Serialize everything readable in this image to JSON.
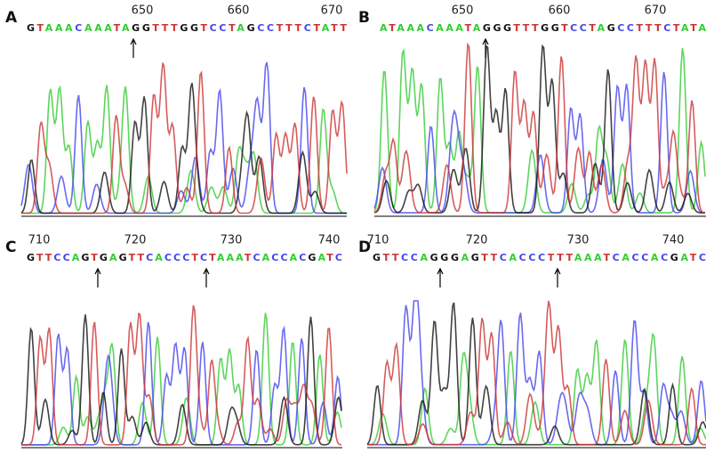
{
  "panels": [
    {
      "label": "A",
      "positions": [
        "650",
        "660",
        "670"
      ],
      "sequence": "GTAAACAAATAGGTTTGGTCCTAGCCTTTCTATT"
    },
    {
      "label": "B",
      "positions": [
        "650",
        "660",
        "670"
      ],
      "sequence": "ATAAACAAATAGGGTTTGGTCCTAGCCTTTCTATA"
    },
    {
      "label": "C",
      "positions": [
        "710",
        "720",
        "730",
        "740"
      ],
      "sequence": "GTTCCAGTGAGTTCACCCTCTAAATCACCACGATC"
    },
    {
      "label": "D",
      "positions": [
        "710",
        "720",
        "730",
        "740"
      ],
      "sequence": "GTTCCAGGGAGTTCACCCTTTAAATCACCACGATC"
    }
  ]
}
